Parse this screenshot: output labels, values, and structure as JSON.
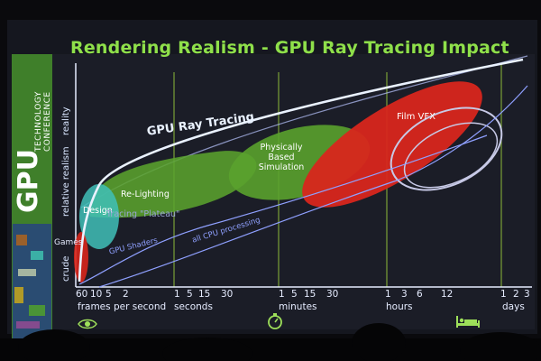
{
  "title": "Rendering Realism - GPU Ray Tracing Impact",
  "branding": {
    "gpu": "GPU",
    "technology": "TECHNOLOGY",
    "conference": "CONFERENCE"
  },
  "y_axis": {
    "top": "reality",
    "middle": "relative realism",
    "bottom": "crude",
    "games": "Games"
  },
  "x_groups": [
    {
      "ticks": [
        "60",
        "10",
        "5",
        "2"
      ],
      "unit": "frames per second"
    },
    {
      "ticks": [
        "1",
        "5",
        "15",
        "30"
      ],
      "unit": "seconds"
    },
    {
      "ticks": [
        "1",
        "5",
        "15",
        "30"
      ],
      "unit": "minutes"
    },
    {
      "ticks": [
        "1",
        "3",
        "6",
        "12"
      ],
      "unit": "hours"
    },
    {
      "ticks": [
        "1",
        "2",
        "3"
      ],
      "unit": "days"
    }
  ],
  "regions": {
    "design": "Design",
    "relighting": "Re-Lighting",
    "plateau": "Tracing \"Plateau\"",
    "physically_based": "Physically\nBased\nSimulation",
    "film_vfx": "Film VFX"
  },
  "curves": {
    "gpu_ray_tracing": "GPU Ray Tracing",
    "gpu_shaders": "GPU Shaders",
    "all_cpu": "all CPU processing"
  },
  "icons": [
    "eye-icon",
    "stopwatch-icon",
    "bed-icon"
  ],
  "colors": {
    "title": "#8fe04a",
    "green_region": "#5aa22d",
    "red_region": "#d8261c",
    "cyan_region": "#3fbfb8",
    "grid": "#8ab83a",
    "curve": "#8fa0ff"
  }
}
